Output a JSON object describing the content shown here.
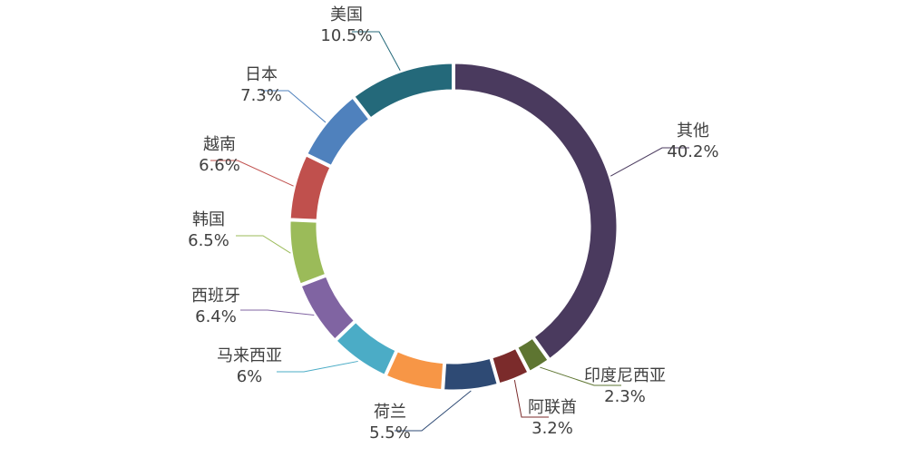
{
  "chart_data": {
    "type": "pie",
    "donut": true,
    "title": "",
    "slices": [
      {
        "label": "其他",
        "value": 40.2,
        "display": "40.2%",
        "color": "#4a3a5e"
      },
      {
        "label": "印度尼西亚",
        "value": 2.3,
        "display": "2.3%",
        "color": "#5e7531"
      },
      {
        "label": "阿联酋",
        "value": 3.2,
        "display": "3.2%",
        "color": "#7b2b2b"
      },
      {
        "label": "荷兰",
        "value": 5.5,
        "display": "5.5%",
        "color": "#2e4a74"
      },
      {
        "label": "",
        "value": 5.8,
        "display": "",
        "color": "#f79646"
      },
      {
        "label": "马来西亚",
        "value": 6,
        "display": "6%",
        "color": "#4bacc6"
      },
      {
        "label": "西班牙",
        "value": 6.4,
        "display": "6.4%",
        "color": "#8064a2"
      },
      {
        "label": "韩国",
        "value": 6.5,
        "display": "6.5%",
        "color": "#9bbb59"
      },
      {
        "label": "越南",
        "value": 6.6,
        "display": "6.6%",
        "color": "#c0504d"
      },
      {
        "label": "日本",
        "value": 7.3,
        "display": "7.3%",
        "color": "#4f81bd"
      },
      {
        "label": "美国",
        "value": 10.5,
        "display": "10.5%",
        "color": "#24697a"
      }
    ],
    "legend": "none"
  }
}
